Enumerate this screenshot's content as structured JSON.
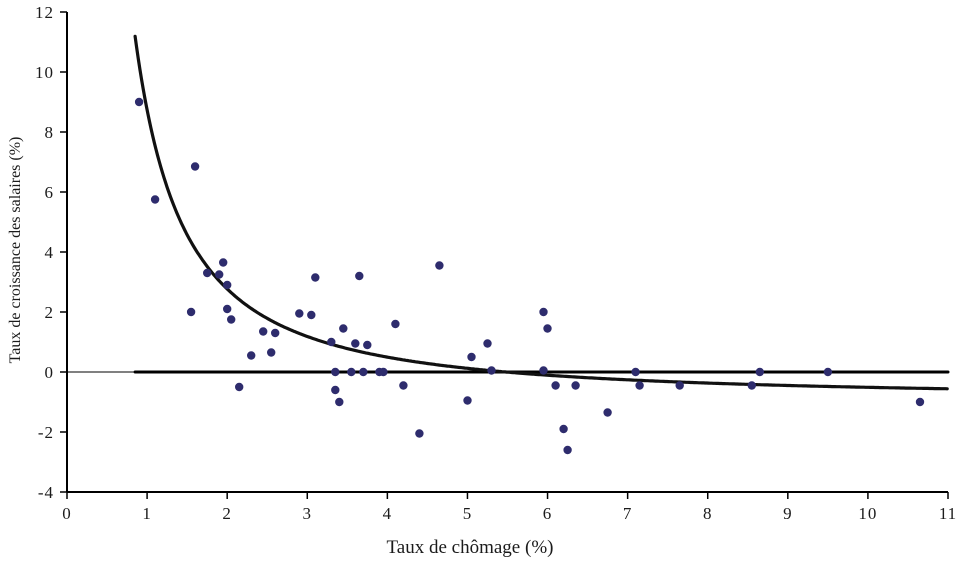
{
  "chart_data": {
    "type": "scatter",
    "title": "",
    "xlabel": "Taux de chômage (%)",
    "ylabel": "Taux de croissance des salaires (%)",
    "xlim": [
      0,
      11
    ],
    "ylim": [
      -4,
      12
    ],
    "x_ticks": [
      0,
      1,
      2,
      3,
      4,
      5,
      6,
      7,
      8,
      9,
      10,
      11
    ],
    "y_ticks": [
      -4,
      -2,
      0,
      2,
      4,
      6,
      8,
      10,
      12
    ],
    "grid": false,
    "legend": false,
    "point_color": "#2e2c6d",
    "curve_color": "#111111",
    "axis_color": "#000000",
    "zero_line": {
      "y": 0,
      "x_start": 0.85,
      "x_end": 11,
      "width": 3
    },
    "fitted_curve": {
      "formula": "y = 9.638 * x^(-1.394) - 0.90",
      "a": 9.638,
      "b": -1.394,
      "c": -0.9,
      "x_start": 0.85,
      "x_end": 11
    },
    "points": [
      [
        0.9,
        9.0
      ],
      [
        1.1,
        5.75
      ],
      [
        1.6,
        6.85
      ],
      [
        1.55,
        2.0
      ],
      [
        1.75,
        3.3
      ],
      [
        1.9,
        3.25
      ],
      [
        1.95,
        3.65
      ],
      [
        2.0,
        2.9
      ],
      [
        2.0,
        2.1
      ],
      [
        2.05,
        1.75
      ],
      [
        2.15,
        -0.5
      ],
      [
        2.3,
        0.55
      ],
      [
        2.45,
        1.35
      ],
      [
        2.55,
        0.65
      ],
      [
        2.6,
        1.3
      ],
      [
        2.9,
        1.95
      ],
      [
        3.05,
        1.9
      ],
      [
        3.1,
        3.15
      ],
      [
        3.3,
        1.0
      ],
      [
        3.35,
        0.0
      ],
      [
        3.35,
        -0.6
      ],
      [
        3.45,
        1.45
      ],
      [
        3.4,
        -1.0
      ],
      [
        3.55,
        0.0
      ],
      [
        3.6,
        0.95
      ],
      [
        3.65,
        3.2
      ],
      [
        3.7,
        0.0
      ],
      [
        3.75,
        0.9
      ],
      [
        3.9,
        0.0
      ],
      [
        3.95,
        0.0
      ],
      [
        4.1,
        1.6
      ],
      [
        4.2,
        -0.45
      ],
      [
        4.4,
        -2.05
      ],
      [
        4.65,
        3.55
      ],
      [
        5.0,
        -0.95
      ],
      [
        5.05,
        0.5
      ],
      [
        5.25,
        0.95
      ],
      [
        5.3,
        0.05
      ],
      [
        5.95,
        2.0
      ],
      [
        5.95,
        0.05
      ],
      [
        6.0,
        1.45
      ],
      [
        6.1,
        -0.45
      ],
      [
        6.2,
        -1.9
      ],
      [
        6.25,
        -2.6
      ],
      [
        6.35,
        -0.45
      ],
      [
        6.75,
        -1.35
      ],
      [
        7.1,
        0.0
      ],
      [
        7.15,
        -0.45
      ],
      [
        7.65,
        -0.45
      ],
      [
        8.55,
        -0.45
      ],
      [
        8.65,
        0.0
      ],
      [
        9.5,
        0.0
      ],
      [
        10.65,
        -1.0
      ]
    ]
  }
}
